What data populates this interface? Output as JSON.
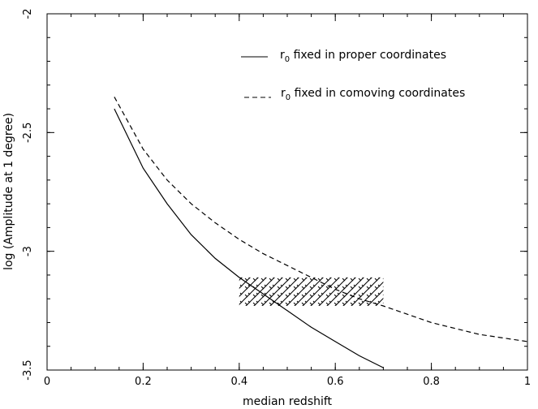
{
  "chart_data": {
    "type": "line",
    "title": "",
    "xlabel": "median redshift",
    "ylabel": "log (Amplitude at 1 degree)",
    "xlim": [
      0,
      1
    ],
    "ylim": [
      -3.5,
      -2
    ],
    "x_ticks": [
      0,
      0.2,
      0.4,
      0.6,
      0.8,
      1
    ],
    "x_tick_labels": [
      "0",
      "0.2",
      "0.4",
      "0.6",
      "0.8",
      "1"
    ],
    "y_ticks": [
      -3.5,
      -3,
      -2.5,
      -2
    ],
    "y_tick_labels": [
      "-3.5",
      "-3",
      "-2.5",
      "-2"
    ],
    "grid": false,
    "legend_position": "top-right",
    "series": [
      {
        "name_prefix": "r",
        "name_sub": "0",
        "name_suffix": " fixed in proper coordinates",
        "style": "solid",
        "x": [
          0.14,
          0.2,
          0.25,
          0.3,
          0.35,
          0.4,
          0.45,
          0.5,
          0.55,
          0.6,
          0.65,
          0.7
        ],
        "y": [
          -2.4,
          -2.65,
          -2.8,
          -2.93,
          -3.03,
          -3.11,
          -3.18,
          -3.25,
          -3.32,
          -3.38,
          -3.44,
          -3.49
        ]
      },
      {
        "name_prefix": "r",
        "name_sub": "0",
        "name_suffix": " fixed in comoving coordinates",
        "style": "dashed",
        "x": [
          0.14,
          0.2,
          0.25,
          0.3,
          0.35,
          0.4,
          0.45,
          0.5,
          0.55,
          0.6,
          0.65,
          0.7,
          0.8,
          0.9,
          1.0
        ],
        "y": [
          -2.35,
          -2.57,
          -2.7,
          -2.8,
          -2.88,
          -2.95,
          -3.01,
          -3.06,
          -3.11,
          -3.16,
          -3.2,
          -3.23,
          -3.3,
          -3.35,
          -3.38
        ]
      }
    ],
    "hatched_region": {
      "x_range": [
        0.4,
        0.7
      ],
      "y_range": [
        -3.23,
        -3.11
      ]
    }
  }
}
